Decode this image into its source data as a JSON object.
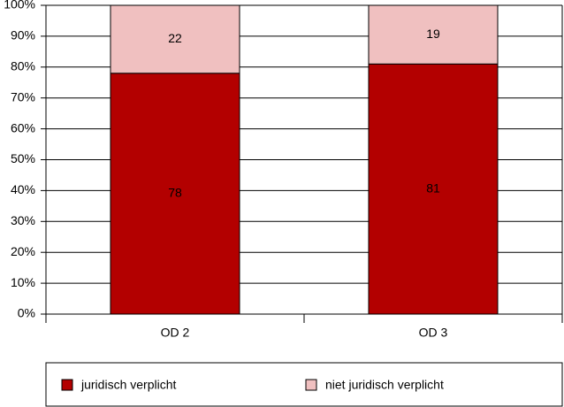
{
  "chart_data": {
    "type": "stacked-bar",
    "categories": [
      "OD 2",
      "OD 3"
    ],
    "series": [
      {
        "name": "juridisch verplicht",
        "color": "#b30000",
        "values": [
          78,
          81
        ]
      },
      {
        "name": "niet juridisch verplicht",
        "color": "#f0c0c0",
        "values": [
          22,
          19
        ]
      }
    ],
    "ylim": [
      0,
      100
    ],
    "yticks": [
      {
        "value": 0,
        "label": "0%"
      },
      {
        "value": 10,
        "label": "10%"
      },
      {
        "value": 20,
        "label": "20%"
      },
      {
        "value": 30,
        "label": "30%"
      },
      {
        "value": 40,
        "label": "40%"
      },
      {
        "value": 50,
        "label": "50%"
      },
      {
        "value": 60,
        "label": "60%"
      },
      {
        "value": 70,
        "label": "70%"
      },
      {
        "value": 80,
        "label": "80%"
      },
      {
        "value": 90,
        "label": "90%"
      },
      {
        "value": 100,
        "label": "100%"
      }
    ],
    "grid": true,
    "legend": "bottom"
  }
}
